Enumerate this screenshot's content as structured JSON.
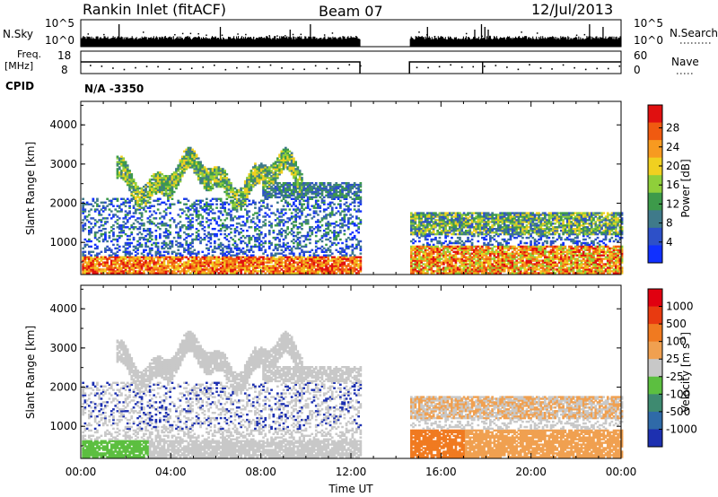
{
  "header": {
    "station": "Rankin Inlet (fitACF)",
    "beam": "Beam 07",
    "date": "12/Jul/2013"
  },
  "panels": {
    "nsky_label": "N.Sky",
    "nsearch_label": "N.Search",
    "nsky_ticks": [
      "10^5",
      "10^0"
    ],
    "nsearch_ticks": [
      "10^5",
      "10^0"
    ],
    "freq_label_1": "Freq.",
    "freq_label_2": "[MHz]",
    "freq_ticks": [
      "18",
      "8"
    ],
    "nave_label": "Nave",
    "nave_ticks": [
      "60",
      "0"
    ],
    "cpid_label": "CPID",
    "cpid_value": "N/A -3350"
  },
  "chart_data": [
    {
      "type": "heatmap",
      "title": "",
      "xlabel": "",
      "ylabel": "Slant Range [km]",
      "x_ticks": [
        "00:00",
        "04:00",
        "08:00",
        "12:00",
        "16:00",
        "20:00",
        "00:00"
      ],
      "x_range_hours": [
        0,
        24
      ],
      "y_ticks": [
        "1000",
        "2000",
        "3000",
        "4000"
      ],
      "ylim": [
        180,
        4600
      ],
      "data_gap_hours": [
        12.4,
        14.6
      ],
      "colorbar": {
        "label": "Power [dB]",
        "ticks": [
          "4",
          "8",
          "12",
          "16",
          "20",
          "24",
          "28"
        ],
        "range": [
          0,
          32
        ],
        "colors": [
          "#1030ff",
          "#2d50c8",
          "#3f7a8a",
          "#3d9a4a",
          "#8fcf3a",
          "#f0d020",
          "#f79a20",
          "#f05a10",
          "#e01010"
        ]
      }
    },
    {
      "type": "heatmap",
      "title": "",
      "xlabel": "Time UT",
      "ylabel": "Slant Range [km]",
      "x_ticks": [
        "00:00",
        "04:00",
        "08:00",
        "12:00",
        "16:00",
        "20:00",
        "00:00"
      ],
      "x_range_hours": [
        0,
        24
      ],
      "y_ticks": [
        "1000",
        "2000",
        "3000",
        "4000"
      ],
      "ylim": [
        180,
        4600
      ],
      "data_gap_hours": [
        12.4,
        14.6
      ],
      "colorbar": {
        "label": "Velocity [m s^-1]",
        "ticks": [
          "1000",
          "500",
          "100",
          "25",
          "-25",
          "-100",
          "-500",
          "-1000"
        ],
        "colors": [
          "#1d30b0",
          "#2f6aa8",
          "#3e8a70",
          "#5cbf40",
          "#c8c8c8",
          "#f0a050",
          "#f07a20",
          "#e83a10",
          "#e00010"
        ]
      }
    }
  ]
}
